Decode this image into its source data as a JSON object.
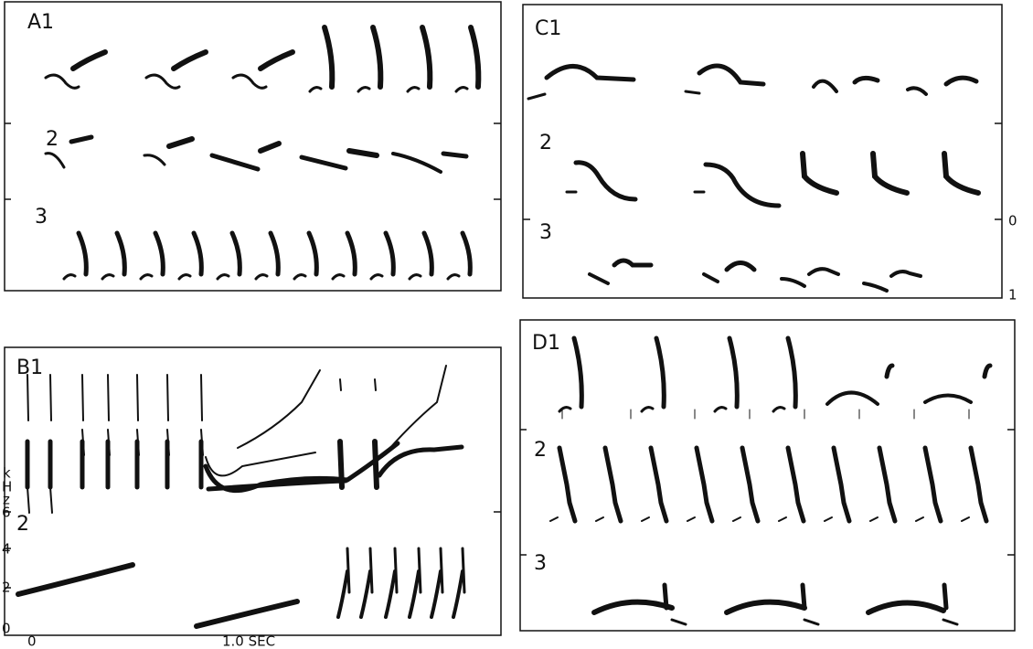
{
  "panels": [
    {
      "label": "A1",
      "rows": [
        "2",
        "3"
      ]
    },
    {
      "label": "C1",
      "rows": [
        "2",
        "3"
      ],
      "scale": [
        "0",
        "1"
      ]
    },
    {
      "label": "B1",
      "rows": [
        "2"
      ],
      "y_label": [
        "k",
        "H",
        "z"
      ],
      "yticks": [
        "6",
        "4",
        "2",
        "0"
      ],
      "xticks": [
        "0",
        "1.0 SEC"
      ]
    },
    {
      "label": "D1",
      "rows": [
        "2",
        "3"
      ]
    }
  ]
}
